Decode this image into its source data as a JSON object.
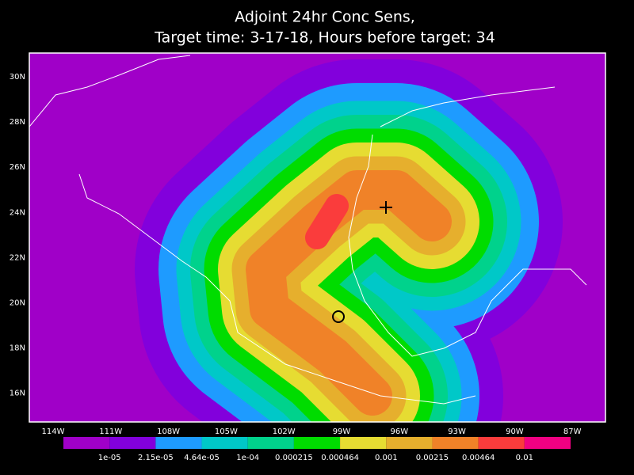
{
  "title": {
    "line1": "Adjoint 24hr Conc Sens,",
    "line2": "Target time: 3-17-18, Hours before target: 34"
  },
  "lat_labels": [
    "30N",
    "28N",
    "26N",
    "24N",
    "22N",
    "20N",
    "18N",
    "16N"
  ],
  "lon_labels": [
    "114W",
    "111W",
    "108W",
    "105W",
    "102W",
    "99W",
    "96W",
    "93W",
    "90W",
    "87W"
  ],
  "colorbar": {
    "colors": [
      "#a000c8",
      "#8200dc",
      "#1e9bff",
      "#00c8c8",
      "#00d28c",
      "#00dc00",
      "#e6dc32",
      "#e6af2d",
      "#f08228",
      "#fa3c3c",
      "#f00082"
    ],
    "labels": [
      "1e-05",
      "2.15e-05",
      "4.64e-05",
      "1e-04",
      "0.000215",
      "0.000464",
      "0.001",
      "0.00215",
      "0.00464",
      "0.01"
    ]
  }
}
